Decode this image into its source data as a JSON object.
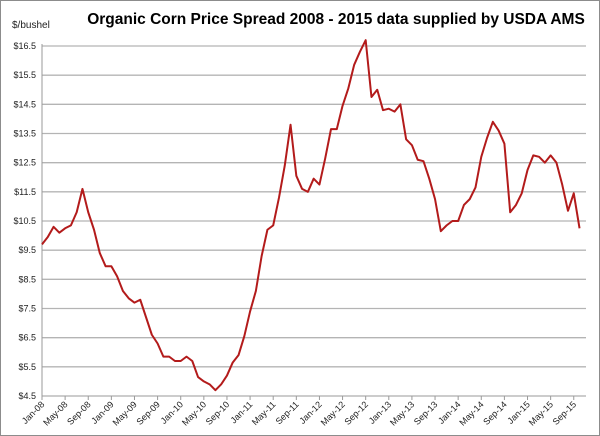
{
  "chart_data": {
    "type": "line",
    "title": "Organic Corn Price Spread 2008 - 2015 data supplied by USDA AMS",
    "ylabel": "$/bushel",
    "xlabel": "",
    "ylim": [
      4.5,
      16.5
    ],
    "yticks": [
      "$4.5",
      "$5.5",
      "$6.5",
      "$7.5",
      "$8.5",
      "$9.5",
      "$10.5",
      "$11.5",
      "$12.5",
      "$13.5",
      "$14.5",
      "$15.5",
      "$16.5"
    ],
    "ytick_values": [
      4.5,
      5.5,
      6.5,
      7.5,
      8.5,
      9.5,
      10.5,
      11.5,
      12.5,
      13.5,
      14.5,
      15.5,
      16.5
    ],
    "xticks": [
      "Jan-08",
      "May-08",
      "Sep-08",
      "Jan-09",
      "May-09",
      "Sep-09",
      "Jan-10",
      "May-10",
      "Sep-10",
      "Jan-11",
      "May-11",
      "Sep-11",
      "Jan-12",
      "May-12",
      "Sep-12",
      "Jan-13",
      "May-13",
      "Sep-13",
      "Jan-14",
      "May-14",
      "Sep-14",
      "Jan-15",
      "May-15",
      "Sep-15"
    ],
    "x_start": "Jan-08",
    "x_step": "1 month",
    "grid": true,
    "line_color": "#b31b1b",
    "series": [
      {
        "values": [
          9.7,
          9.95,
          10.3,
          10.1,
          10.25,
          10.35,
          10.8,
          11.6,
          10.8,
          10.2,
          9.4,
          8.95,
          8.95,
          8.6,
          8.1,
          7.85,
          7.7,
          7.8,
          7.2,
          6.6,
          6.3,
          5.85,
          5.85,
          5.7,
          5.7,
          5.85,
          5.7,
          5.15,
          5.0,
          4.9,
          4.7,
          4.9,
          5.2,
          5.65,
          5.9,
          6.55,
          7.4,
          8.1,
          9.3,
          10.2,
          10.35,
          11.3,
          12.4,
          13.8,
          12.05,
          11.6,
          11.5,
          11.95,
          11.75,
          12.65,
          13.65,
          13.65,
          14.45,
          15.05,
          15.85,
          16.3,
          16.7,
          14.75,
          15.0,
          14.3,
          14.35,
          14.25,
          14.5,
          13.3,
          13.1,
          12.6,
          12.55,
          11.95,
          11.25,
          10.15,
          10.35,
          10.5,
          10.5,
          11.05,
          11.25,
          11.65,
          12.7,
          13.35,
          13.9,
          13.6,
          13.15,
          10.8,
          11.05,
          11.45,
          12.25,
          12.75,
          12.7,
          12.5,
          12.75,
          12.5,
          11.75,
          10.85,
          11.45,
          10.25
        ]
      }
    ]
  }
}
